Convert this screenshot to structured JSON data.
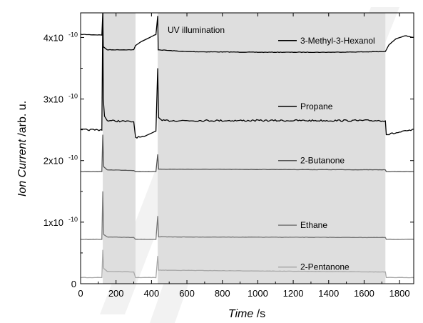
{
  "chart_data": {
    "type": "line",
    "annotation": "UV illumination",
    "xlabel": {
      "italic": "Time",
      "unit": " /s"
    },
    "ylabel": {
      "italic": "Ion Current",
      "unit": " /arb. u."
    },
    "xlim": [
      0,
      1880
    ],
    "ylim": [
      0,
      4.4e-10
    ],
    "x_ticks": [
      0,
      200,
      400,
      600,
      800,
      1000,
      1200,
      1400,
      1600,
      1800
    ],
    "y_ticks": [
      {
        "value": 0,
        "base": "0",
        "exp": ""
      },
      {
        "value": 1e-10,
        "base": "1x10",
        "exp": "-10"
      },
      {
        "value": 2e-10,
        "base": "2x10",
        "exp": "-10"
      },
      {
        "value": 3e-10,
        "base": "3x10",
        "exp": "-10"
      },
      {
        "value": 4e-10,
        "base": "4x10",
        "exp": "-10"
      }
    ],
    "uv_intervals": [
      [
        125,
        310
      ],
      [
        435,
        1720
      ]
    ],
    "grid": false,
    "series": [
      {
        "name": "3-Methyl-3-Hexanol",
        "color": "#000000",
        "points": [
          [
            0,
            4.05e-10
          ],
          [
            120,
            4.04e-10
          ],
          [
            125,
            4.4e-10
          ],
          [
            128,
            3.85e-10
          ],
          [
            150,
            3.8e-10
          ],
          [
            300,
            3.8e-10
          ],
          [
            310,
            3.87e-10
          ],
          [
            340,
            3.93e-10
          ],
          [
            390,
            4e-10
          ],
          [
            425,
            4.05e-10
          ],
          [
            435,
            4.35e-10
          ],
          [
            438,
            3.8e-10
          ],
          [
            600,
            3.77e-10
          ],
          [
            1000,
            3.76e-10
          ],
          [
            1400,
            3.76e-10
          ],
          [
            1720,
            3.77e-10
          ],
          [
            1740,
            3.88e-10
          ],
          [
            1780,
            3.98e-10
          ],
          [
            1830,
            4.03e-10
          ],
          [
            1880,
            4e-10
          ]
        ]
      },
      {
        "name": "Propane",
        "color": "#000000",
        "points": [
          [
            0,
            2.5e-10
          ],
          [
            120,
            2.5e-10
          ],
          [
            125,
            4.4e-10
          ],
          [
            128,
            3e-10
          ],
          [
            135,
            2.72e-10
          ],
          [
            150,
            2.65e-10
          ],
          [
            300,
            2.63e-10
          ],
          [
            310,
            2.38e-10
          ],
          [
            350,
            2.38e-10
          ],
          [
            425,
            2.48e-10
          ],
          [
            435,
            3.5e-10
          ],
          [
            440,
            2.7e-10
          ],
          [
            460,
            2.65e-10
          ],
          [
            1720,
            2.65e-10
          ],
          [
            1725,
            2.42e-10
          ],
          [
            1800,
            2.46e-10
          ],
          [
            1880,
            2.5e-10
          ]
        ]
      },
      {
        "name": "2-Butanone",
        "color": "#555555",
        "points": [
          [
            0,
            1.82e-10
          ],
          [
            120,
            1.82e-10
          ],
          [
            125,
            2.42e-10
          ],
          [
            130,
            1.9e-10
          ],
          [
            150,
            1.85e-10
          ],
          [
            300,
            1.84e-10
          ],
          [
            310,
            1.82e-10
          ],
          [
            425,
            1.82e-10
          ],
          [
            435,
            2.1e-10
          ],
          [
            440,
            1.86e-10
          ],
          [
            1720,
            1.85e-10
          ],
          [
            1725,
            1.82e-10
          ],
          [
            1880,
            1.82e-10
          ]
        ]
      },
      {
        "name": "Ethane",
        "color": "#777777",
        "points": [
          [
            0,
            7.2e-11
          ],
          [
            120,
            7.2e-11
          ],
          [
            125,
            1.5e-10
          ],
          [
            130,
            8e-11
          ],
          [
            150,
            7.6e-11
          ],
          [
            300,
            7.5e-11
          ],
          [
            310,
            7.2e-11
          ],
          [
            425,
            7.2e-11
          ],
          [
            435,
            1.1e-10
          ],
          [
            440,
            7.6e-11
          ],
          [
            1720,
            7.5e-11
          ],
          [
            1725,
            7.2e-11
          ],
          [
            1880,
            7.2e-11
          ]
        ]
      },
      {
        "name": "2-Pentanone",
        "color": "#a8a8a8",
        "points": [
          [
            0,
            1e-11
          ],
          [
            120,
            1e-11
          ],
          [
            125,
            5.5e-11
          ],
          [
            130,
            2.5e-11
          ],
          [
            150,
            2e-11
          ],
          [
            300,
            1.9e-11
          ],
          [
            310,
            1e-11
          ],
          [
            425,
            1e-11
          ],
          [
            435,
            4.5e-11
          ],
          [
            440,
            2.2e-11
          ],
          [
            1720,
            1.9e-11
          ],
          [
            1725,
            1e-11
          ],
          [
            1880,
            1e-11
          ]
        ]
      }
    ],
    "legend_labels": [
      {
        "series": "3-Methyl-3-Hexanol",
        "value": 3.95e-10
      },
      {
        "series": "Propane",
        "value": 2.88e-10
      },
      {
        "series": "2-Butanone",
        "value": 2e-10
      },
      {
        "series": "Ethane",
        "value": 9.5e-11
      },
      {
        "series": "2-Pentanone",
        "value": 2.7e-11
      }
    ]
  }
}
